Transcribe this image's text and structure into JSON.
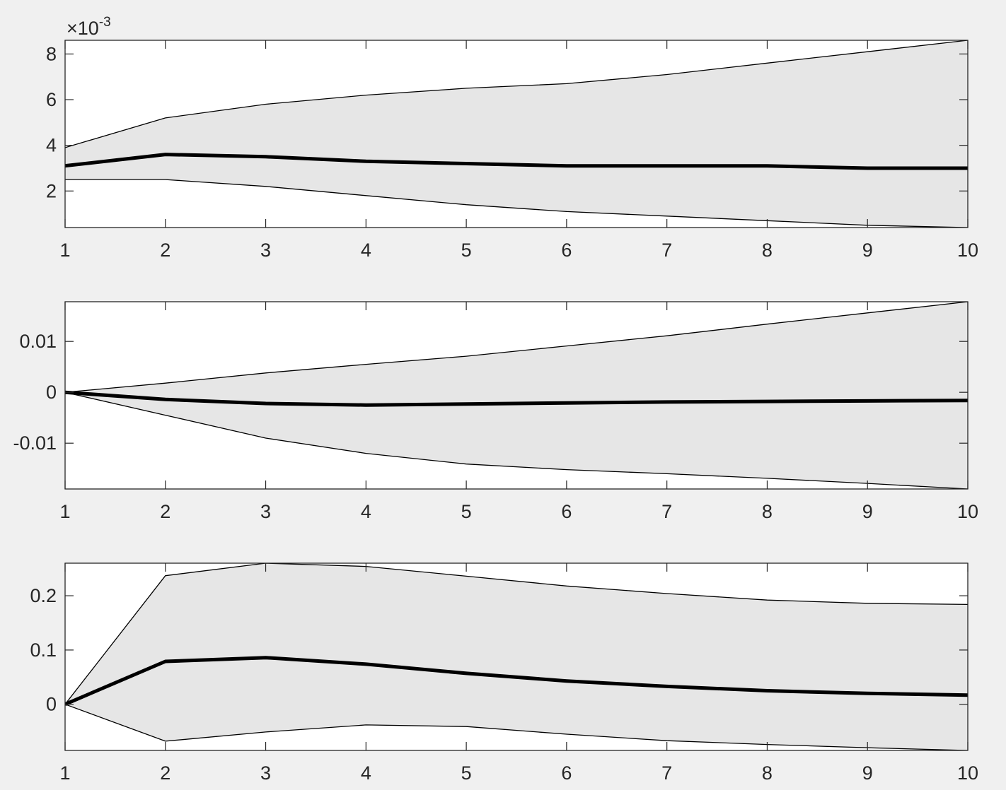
{
  "figure": {
    "background": "#f0f0f0",
    "axes_background": "#ffffff",
    "band_color": "#e6e6e6",
    "line_color": "#000000"
  },
  "chart_data": [
    {
      "type": "area",
      "x": [
        1,
        2,
        3,
        4,
        5,
        6,
        7,
        8,
        9,
        10
      ],
      "xlim": [
        1,
        10
      ],
      "ylim": [
        0.0004,
        0.0086
      ],
      "xticks": [
        "1",
        "2",
        "3",
        "4",
        "5",
        "6",
        "7",
        "8",
        "9",
        "10"
      ],
      "yticks": [
        0.002,
        0.004,
        0.006,
        0.008
      ],
      "ytick_labels": [
        "2",
        "4",
        "6",
        "8"
      ],
      "exponent_label": "×10",
      "exponent_power": "-3",
      "series": [
        {
          "role": "upper",
          "values": [
            0.0039,
            0.0052,
            0.0058,
            0.0062,
            0.0065,
            0.0067,
            0.0071,
            0.0076,
            0.0081,
            0.0086
          ]
        },
        {
          "role": "median",
          "values": [
            0.0031,
            0.0036,
            0.0035,
            0.0033,
            0.0032,
            0.0031,
            0.0031,
            0.0031,
            0.003,
            0.003
          ]
        },
        {
          "role": "lower",
          "values": [
            0.0025,
            0.0025,
            0.0022,
            0.0018,
            0.0014,
            0.0011,
            0.0009,
            0.0007,
            0.0005,
            0.0004
          ]
        }
      ],
      "grid": false
    },
    {
      "type": "area",
      "x": [
        1,
        2,
        3,
        4,
        5,
        6,
        7,
        8,
        9,
        10
      ],
      "xlim": [
        1,
        10
      ],
      "ylim": [
        -0.019,
        0.0178
      ],
      "xticks": [
        "1",
        "2",
        "3",
        "4",
        "5",
        "6",
        "7",
        "8",
        "9",
        "10"
      ],
      "yticks": [
        -0.01,
        0,
        0.01
      ],
      "ytick_labels": [
        "-0.01",
        "0",
        "0.01"
      ],
      "series": [
        {
          "role": "upper",
          "values": [
            0,
            0.0018,
            0.0038,
            0.0055,
            0.0071,
            0.0091,
            0.0111,
            0.0134,
            0.0156,
            0.0178
          ]
        },
        {
          "role": "median",
          "values": [
            0,
            -0.0014,
            -0.0022,
            -0.0025,
            -0.0023,
            -0.0021,
            -0.0019,
            -0.0018,
            -0.0017,
            -0.0016
          ]
        },
        {
          "role": "lower",
          "values": [
            0,
            -0.0045,
            -0.009,
            -0.012,
            -0.0141,
            -0.0152,
            -0.016,
            -0.0169,
            -0.0179,
            -0.019
          ]
        }
      ],
      "grid": false
    },
    {
      "type": "area",
      "x": [
        1,
        2,
        3,
        4,
        5,
        6,
        7,
        8,
        9,
        10
      ],
      "xlim": [
        1,
        10
      ],
      "ylim": [
        -0.085,
        0.26
      ],
      "xticks": [
        "1",
        "2",
        "3",
        "4",
        "5",
        "6",
        "7",
        "8",
        "9",
        "10"
      ],
      "yticks": [
        0,
        0.1,
        0.2
      ],
      "ytick_labels": [
        "0",
        "0.1",
        "0.2"
      ],
      "series": [
        {
          "role": "upper",
          "values": [
            0,
            0.237,
            0.26,
            0.254,
            0.236,
            0.218,
            0.204,
            0.192,
            0.186,
            0.184
          ]
        },
        {
          "role": "median",
          "values": [
            0,
            0.079,
            0.086,
            0.074,
            0.057,
            0.043,
            0.033,
            0.025,
            0.02,
            0.017
          ]
        },
        {
          "role": "lower",
          "values": [
            0,
            -0.068,
            -0.051,
            -0.038,
            -0.041,
            -0.055,
            -0.067,
            -0.074,
            -0.08,
            -0.085
          ]
        }
      ],
      "grid": false
    }
  ]
}
